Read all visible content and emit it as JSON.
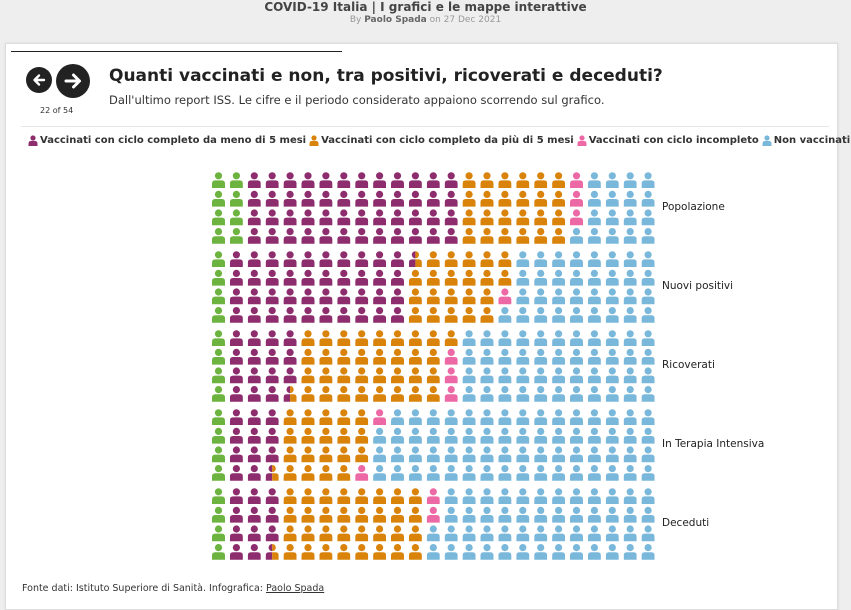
{
  "page": {
    "story_title": "COVID-19 Italia | I grafici e le mappe interattive",
    "byline_prefix": "By",
    "author": "Paolo Spada",
    "byline_date": "on 27 Dec 2021"
  },
  "nav": {
    "prev_icon": "arrow-left-icon",
    "next_icon": "arrow-right-icon",
    "page_count": "22 of 54"
  },
  "slide": {
    "title": "Quanti vaccinati e non, tra positivi, ricoverati e deceduti?",
    "subtitle": "Dall'ultimo report ISS. Le cifre e il periodo considerato appaiono scorrendo sul grafico."
  },
  "legend": [
    {
      "label": "Vaccinati con ciclo completo da meno di 5 mesi",
      "color": "#8e2d6e"
    },
    {
      "label": "Vaccinati con ciclo completo da più di 5 mesi",
      "color": "#d9830b"
    },
    {
      "label": "Vaccinati con ciclo incompleto",
      "color": "#ec69a5"
    },
    {
      "label": "Non vaccinati",
      "color": "#7ab8db"
    }
  ],
  "colors": {
    "green": "#6db33f",
    "purple": "#8e2d6e",
    "orange": "#d9830b",
    "pink": "#ec69a5",
    "blue": "#7ab8db"
  },
  "chart_data": {
    "type": "pictogram-grid",
    "icon": "person-icon",
    "icons_per_group": 100,
    "groups": [
      {
        "label": "Popolazione",
        "green": 8,
        "purple": 48,
        "orange": 24,
        "pink": 3,
        "blue": 17
      },
      {
        "label": "Nuovi positivi",
        "green": 4,
        "purple": 40.5,
        "orange": 21.5,
        "pink": 1,
        "blue": 33
      },
      {
        "label": "Ricoverati",
        "green": 4,
        "purple": 15.5,
        "orange": 33.5,
        "pink": 3,
        "blue": 44
      },
      {
        "label": "In Terapia Intensiva",
        "green": 4,
        "purple": 11.5,
        "orange": 19.5,
        "pink": 2,
        "blue": 63
      },
      {
        "label": "Deceduti",
        "green": 4,
        "purple": 11.5,
        "orange": 32.5,
        "pink": 2,
        "blue": 50
      }
    ]
  },
  "source": {
    "text": "Fonte dati: Istituto Superiore di Sanità. Infografica:",
    "link": "Paolo Spada"
  }
}
